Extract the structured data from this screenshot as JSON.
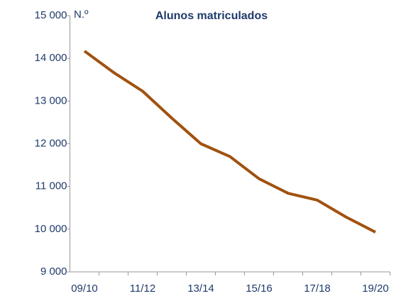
{
  "chart_data": {
    "type": "line",
    "title": "Alunos matriculados",
    "y_unit": "N.º",
    "categories": [
      "09/10",
      null,
      "11/12",
      null,
      "13/14",
      null,
      "15/16",
      null,
      "17/18",
      null,
      "19/20"
    ],
    "series": [
      {
        "name": "Alunos matriculados",
        "color": "#a0520f",
        "values": [
          14170,
          13670,
          13230,
          12600,
          12000,
          11700,
          11180,
          10840,
          10680,
          10280,
          9930
        ]
      }
    ],
    "ylim": [
      9000,
      15000
    ],
    "yticks": [
      {
        "value": 9000,
        "label": "9 000"
      },
      {
        "value": 10000,
        "label": "10 000"
      },
      {
        "value": 11000,
        "label": "11 000"
      },
      {
        "value": 12000,
        "label": "12 000"
      },
      {
        "value": 13000,
        "label": "13 000"
      },
      {
        "value": 14000,
        "label": "14 000"
      },
      {
        "value": 15000,
        "label": "15 000"
      }
    ],
    "grid": false
  }
}
